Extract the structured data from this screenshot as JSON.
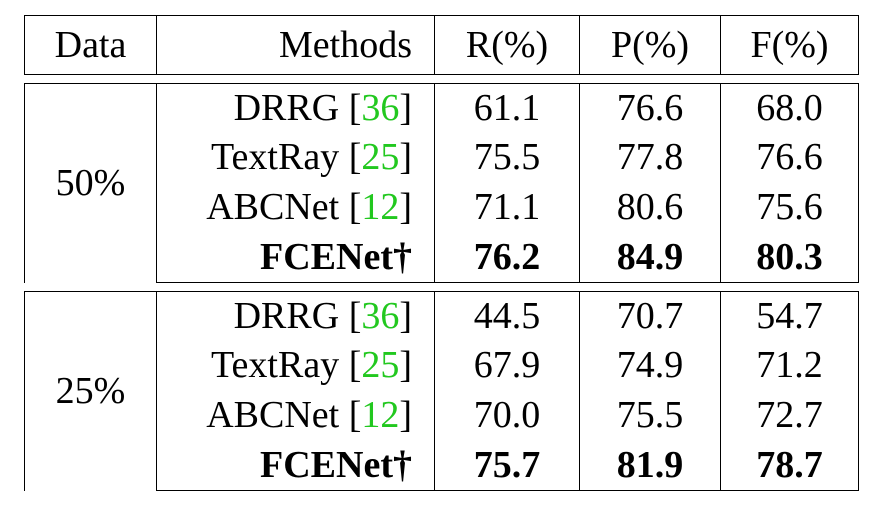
{
  "table": {
    "headers": [
      "Data",
      "Methods",
      "R(%)",
      "P(%)",
      "F(%)"
    ],
    "groups": [
      {
        "data": "50%",
        "rows": [
          {
            "method": "DRRG",
            "cite": "36",
            "r": "61.1",
            "p": "76.6",
            "f": "68.0"
          },
          {
            "method": "TextRay",
            "cite": "25",
            "r": "75.5",
            "p": "77.8",
            "f": "76.6"
          },
          {
            "method": "ABCNet",
            "cite": "12",
            "r": "71.1",
            "p": "80.6",
            "f": "75.6"
          },
          {
            "method": "FCENet†",
            "cite": "",
            "r": "76.2",
            "p": "84.9",
            "f": "80.3",
            "bold": true
          }
        ]
      },
      {
        "data": "25%",
        "rows": [
          {
            "method": "DRRG",
            "cite": "36",
            "r": "44.5",
            "p": "70.7",
            "f": "54.7"
          },
          {
            "method": "TextRay",
            "cite": "25",
            "r": "67.9",
            "p": "74.9",
            "f": "71.2"
          },
          {
            "method": "ABCNet",
            "cite": "12",
            "r": "70.0",
            "p": "75.5",
            "f": "72.7"
          },
          {
            "method": "FCENet†",
            "cite": "",
            "r": "75.7",
            "p": "81.9",
            "f": "78.7",
            "bold": true
          }
        ]
      }
    ]
  },
  "colors": {
    "citation": "#22c81f",
    "text": "#000000"
  }
}
